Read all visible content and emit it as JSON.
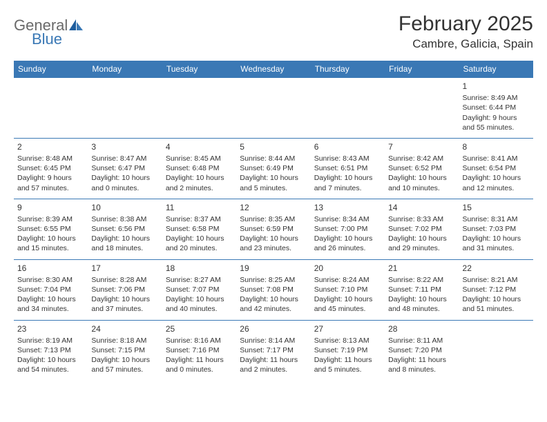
{
  "brand": {
    "part1": "General",
    "part2": "Blue"
  },
  "title": "February 2025",
  "location": "Cambre, Galicia, Spain",
  "colors": {
    "header_bg": "#3a78b5",
    "header_text": "#ffffff",
    "border": "#3a78b5",
    "text": "#333333",
    "logo_gray": "#6a6a6a",
    "logo_blue": "#3a78b5",
    "background": "#ffffff"
  },
  "day_headers": [
    "Sunday",
    "Monday",
    "Tuesday",
    "Wednesday",
    "Thursday",
    "Friday",
    "Saturday"
  ],
  "weeks": [
    [
      null,
      null,
      null,
      null,
      null,
      null,
      {
        "d": "1",
        "sr": "Sunrise: 8:49 AM",
        "ss": "Sunset: 6:44 PM",
        "dl1": "Daylight: 9 hours",
        "dl2": "and 55 minutes."
      }
    ],
    [
      {
        "d": "2",
        "sr": "Sunrise: 8:48 AM",
        "ss": "Sunset: 6:45 PM",
        "dl1": "Daylight: 9 hours",
        "dl2": "and 57 minutes."
      },
      {
        "d": "3",
        "sr": "Sunrise: 8:47 AM",
        "ss": "Sunset: 6:47 PM",
        "dl1": "Daylight: 10 hours",
        "dl2": "and 0 minutes."
      },
      {
        "d": "4",
        "sr": "Sunrise: 8:45 AM",
        "ss": "Sunset: 6:48 PM",
        "dl1": "Daylight: 10 hours",
        "dl2": "and 2 minutes."
      },
      {
        "d": "5",
        "sr": "Sunrise: 8:44 AM",
        "ss": "Sunset: 6:49 PM",
        "dl1": "Daylight: 10 hours",
        "dl2": "and 5 minutes."
      },
      {
        "d": "6",
        "sr": "Sunrise: 8:43 AM",
        "ss": "Sunset: 6:51 PM",
        "dl1": "Daylight: 10 hours",
        "dl2": "and 7 minutes."
      },
      {
        "d": "7",
        "sr": "Sunrise: 8:42 AM",
        "ss": "Sunset: 6:52 PM",
        "dl1": "Daylight: 10 hours",
        "dl2": "and 10 minutes."
      },
      {
        "d": "8",
        "sr": "Sunrise: 8:41 AM",
        "ss": "Sunset: 6:54 PM",
        "dl1": "Daylight: 10 hours",
        "dl2": "and 12 minutes."
      }
    ],
    [
      {
        "d": "9",
        "sr": "Sunrise: 8:39 AM",
        "ss": "Sunset: 6:55 PM",
        "dl1": "Daylight: 10 hours",
        "dl2": "and 15 minutes."
      },
      {
        "d": "10",
        "sr": "Sunrise: 8:38 AM",
        "ss": "Sunset: 6:56 PM",
        "dl1": "Daylight: 10 hours",
        "dl2": "and 18 minutes."
      },
      {
        "d": "11",
        "sr": "Sunrise: 8:37 AM",
        "ss": "Sunset: 6:58 PM",
        "dl1": "Daylight: 10 hours",
        "dl2": "and 20 minutes."
      },
      {
        "d": "12",
        "sr": "Sunrise: 8:35 AM",
        "ss": "Sunset: 6:59 PM",
        "dl1": "Daylight: 10 hours",
        "dl2": "and 23 minutes."
      },
      {
        "d": "13",
        "sr": "Sunrise: 8:34 AM",
        "ss": "Sunset: 7:00 PM",
        "dl1": "Daylight: 10 hours",
        "dl2": "and 26 minutes."
      },
      {
        "d": "14",
        "sr": "Sunrise: 8:33 AM",
        "ss": "Sunset: 7:02 PM",
        "dl1": "Daylight: 10 hours",
        "dl2": "and 29 minutes."
      },
      {
        "d": "15",
        "sr": "Sunrise: 8:31 AM",
        "ss": "Sunset: 7:03 PM",
        "dl1": "Daylight: 10 hours",
        "dl2": "and 31 minutes."
      }
    ],
    [
      {
        "d": "16",
        "sr": "Sunrise: 8:30 AM",
        "ss": "Sunset: 7:04 PM",
        "dl1": "Daylight: 10 hours",
        "dl2": "and 34 minutes."
      },
      {
        "d": "17",
        "sr": "Sunrise: 8:28 AM",
        "ss": "Sunset: 7:06 PM",
        "dl1": "Daylight: 10 hours",
        "dl2": "and 37 minutes."
      },
      {
        "d": "18",
        "sr": "Sunrise: 8:27 AM",
        "ss": "Sunset: 7:07 PM",
        "dl1": "Daylight: 10 hours",
        "dl2": "and 40 minutes."
      },
      {
        "d": "19",
        "sr": "Sunrise: 8:25 AM",
        "ss": "Sunset: 7:08 PM",
        "dl1": "Daylight: 10 hours",
        "dl2": "and 42 minutes."
      },
      {
        "d": "20",
        "sr": "Sunrise: 8:24 AM",
        "ss": "Sunset: 7:10 PM",
        "dl1": "Daylight: 10 hours",
        "dl2": "and 45 minutes."
      },
      {
        "d": "21",
        "sr": "Sunrise: 8:22 AM",
        "ss": "Sunset: 7:11 PM",
        "dl1": "Daylight: 10 hours",
        "dl2": "and 48 minutes."
      },
      {
        "d": "22",
        "sr": "Sunrise: 8:21 AM",
        "ss": "Sunset: 7:12 PM",
        "dl1": "Daylight: 10 hours",
        "dl2": "and 51 minutes."
      }
    ],
    [
      {
        "d": "23",
        "sr": "Sunrise: 8:19 AM",
        "ss": "Sunset: 7:13 PM",
        "dl1": "Daylight: 10 hours",
        "dl2": "and 54 minutes."
      },
      {
        "d": "24",
        "sr": "Sunrise: 8:18 AM",
        "ss": "Sunset: 7:15 PM",
        "dl1": "Daylight: 10 hours",
        "dl2": "and 57 minutes."
      },
      {
        "d": "25",
        "sr": "Sunrise: 8:16 AM",
        "ss": "Sunset: 7:16 PM",
        "dl1": "Daylight: 11 hours",
        "dl2": "and 0 minutes."
      },
      {
        "d": "26",
        "sr": "Sunrise: 8:14 AM",
        "ss": "Sunset: 7:17 PM",
        "dl1": "Daylight: 11 hours",
        "dl2": "and 2 minutes."
      },
      {
        "d": "27",
        "sr": "Sunrise: 8:13 AM",
        "ss": "Sunset: 7:19 PM",
        "dl1": "Daylight: 11 hours",
        "dl2": "and 5 minutes."
      },
      {
        "d": "28",
        "sr": "Sunrise: 8:11 AM",
        "ss": "Sunset: 7:20 PM",
        "dl1": "Daylight: 11 hours",
        "dl2": "and 8 minutes."
      },
      null
    ]
  ]
}
